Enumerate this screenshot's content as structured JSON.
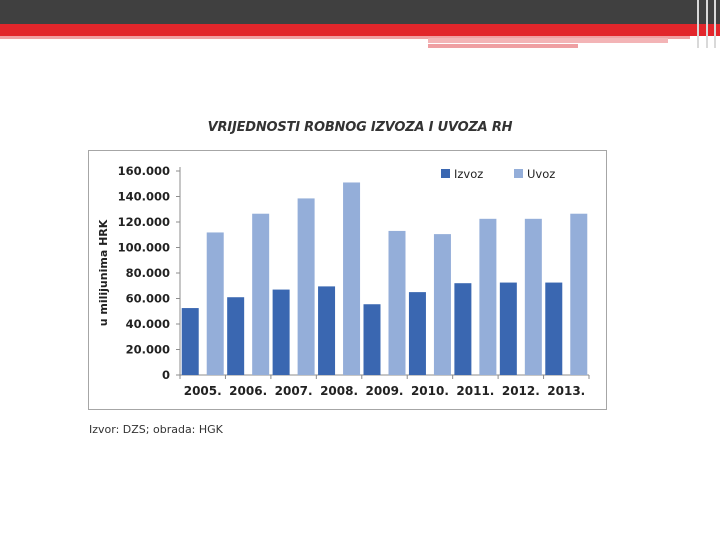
{
  "chart_data": {
    "type": "bar",
    "title": "VRIJEDNOSTI ROBNOG IZVOZA I UVOZA RH",
    "xlabel": "",
    "ylabel": "u milijunima HRK",
    "ylim": [
      0,
      160000
    ],
    "yticks": [
      "0",
      "20.000",
      "40.000",
      "60.000",
      "80.000",
      "100.000",
      "120.000",
      "140.000",
      "160.000"
    ],
    "categories": [
      "2005.",
      "2006.",
      "2007.",
      "2008.",
      "2009.",
      "2010.",
      "2011.",
      "2012.",
      "2013."
    ],
    "series": [
      {
        "name": "Izvoz",
        "color": "#3a67b1",
        "values": [
          52500,
          61000,
          67000,
          69500,
          55500,
          65000,
          72000,
          72500,
          72500
        ]
      },
      {
        "name": "Uvoz",
        "color": "#94aed9",
        "values": [
          111800,
          126500,
          138500,
          151000,
          113000,
          110500,
          122500,
          122500,
          126500
        ]
      }
    ],
    "legend": "top-right",
    "grid": false
  },
  "source_note": "Izvor: DZS; obrada: HGK"
}
